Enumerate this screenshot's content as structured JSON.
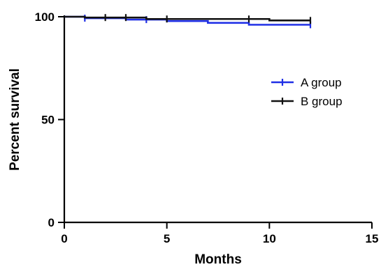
{
  "chart_data": {
    "type": "line",
    "subtype": "kaplan-meier",
    "title": "",
    "xlabel": "Months",
    "ylabel": "Percent survival",
    "xlim": [
      0,
      15
    ],
    "ylim": [
      0,
      100
    ],
    "xticks": [
      0,
      5,
      10,
      15
    ],
    "yticks": [
      0,
      50,
      100
    ],
    "grid": false,
    "legend_position": "right",
    "series": [
      {
        "name": "A group",
        "color": "#1f2fe6",
        "steps": [
          {
            "x": 0,
            "y": 100
          },
          {
            "x": 1,
            "y": 99.3
          },
          {
            "x": 3,
            "y": 98.6
          },
          {
            "x": 5,
            "y": 97.9
          },
          {
            "x": 7,
            "y": 97.0
          },
          {
            "x": 9,
            "y": 96.1
          },
          {
            "x": 12,
            "y": 96.1
          }
        ],
        "censored": [
          1,
          4,
          12
        ]
      },
      {
        "name": "B group",
        "color": "#111111",
        "steps": [
          {
            "x": 0,
            "y": 100
          },
          {
            "x": 1,
            "y": 99.6
          },
          {
            "x": 4,
            "y": 98.9
          },
          {
            "x": 10,
            "y": 98.2
          },
          {
            "x": 12,
            "y": 98.2
          }
        ],
        "censored": [
          2,
          3,
          5,
          9,
          12
        ]
      }
    ]
  }
}
